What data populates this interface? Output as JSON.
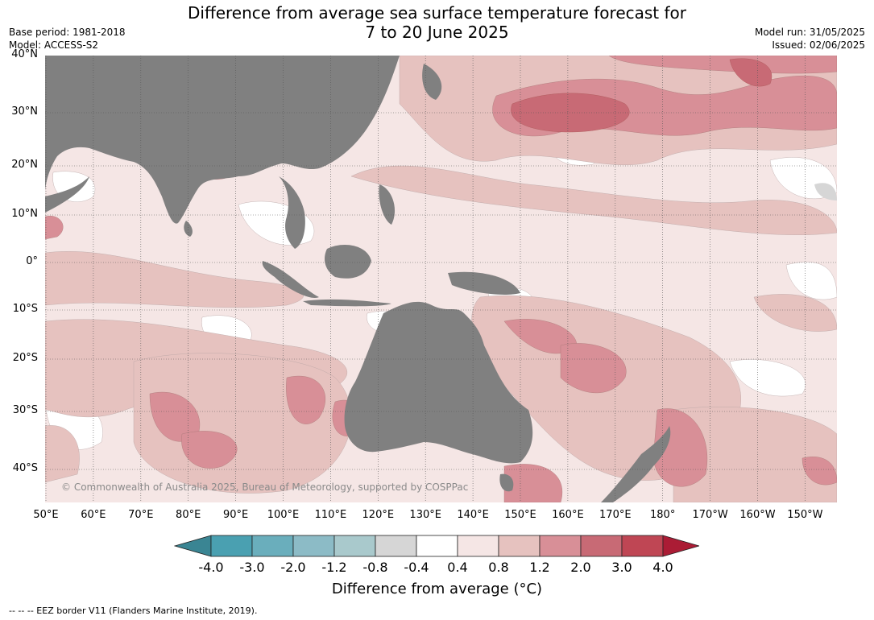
{
  "title_line1": "Difference from average sea surface temperature forecast for",
  "title_line2": "7 to 20 June 2025",
  "base_period": "Base period: 1981-2018",
  "model": "Model: ACCESS-S2",
  "model_run": "Model run: 31/05/2025",
  "issued": "Issued: 02/06/2025",
  "lat_labels": [
    "40°N",
    "30°N",
    "20°N",
    "10°N",
    "0°",
    "10°S",
    "20°S",
    "30°S",
    "40°S"
  ],
  "lon_labels": [
    "50°E",
    "60°E",
    "70°E",
    "80°E",
    "90°E",
    "100°E",
    "110°E",
    "120°E",
    "130°E",
    "140°E",
    "150°E",
    "160°E",
    "170°E",
    "180°",
    "170°W",
    "160°W",
    "150°W"
  ],
  "copyright": "© Commonwealth of Australia 2025, Bureau of Meteorology, supported by COSPPac",
  "colorbar": {
    "labels": [
      "-4.0",
      "-3.0",
      "-2.0",
      "-1.2",
      "-0.8",
      "-0.4",
      "0.4",
      "0.8",
      "1.2",
      "2.0",
      "3.0",
      "4.0"
    ],
    "colors": [
      "#3a8593",
      "#4aa0b1",
      "#6aaebc",
      "#8cbbc6",
      "#a9c9cc",
      "#d6d6d6",
      "#ffffff",
      "#f5e6e5",
      "#e6c2bf",
      "#d88f97",
      "#c86a75",
      "#bf4654",
      "#ab1c35"
    ],
    "title": "Difference from average (°C)"
  },
  "footer": "--  --  -- EEZ border V11 (Flanders Marine Institute, 2019)."
}
